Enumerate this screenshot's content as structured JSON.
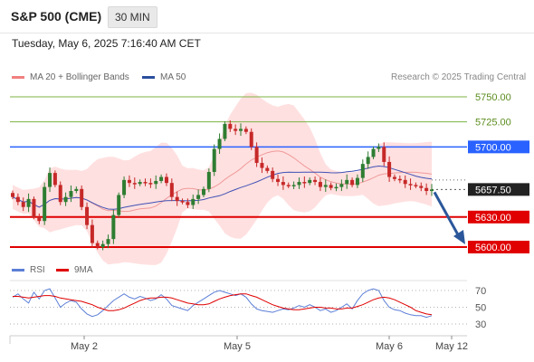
{
  "header": {
    "title": "S&P 500 (CME)",
    "timeframe": "30 MIN"
  },
  "datetime": "Tuesday, May 6, 2025 7:16:40 AM CET",
  "legend": {
    "ma20": "MA 20 + Bollinger Bands",
    "ma50": "MA 50",
    "rsi": "RSI",
    "ma9": "9MA"
  },
  "copyright": "Research © 2025 Trading Central",
  "colors": {
    "up": "#2e7d32",
    "down": "#c62828",
    "resistance": "#2962ff",
    "support": "#e00000",
    "target": "#7cb342",
    "ma20": "#ef9a9a",
    "ma50": "#3f51b5",
    "band": "#ffd5d5",
    "rsi": "#5c7fd6",
    "rsi_ma": "#e00000",
    "arrow": "#2b579a"
  },
  "chart_data": [
    {
      "type": "candlestick",
      "title": "S&P 500 (CME)",
      "timeframe": "30 MIN",
      "y_range": [
        5585,
        5765
      ],
      "x_labels": [
        "May 2",
        "May 5",
        "May 6",
        "May 12"
      ],
      "levels": [
        {
          "value": 5750.0,
          "label": "5750.00",
          "kind": "target"
        },
        {
          "value": 5725.0,
          "label": "5725.00",
          "kind": "target"
        },
        {
          "value": 5700.0,
          "label": "5700.00",
          "kind": "resistance"
        },
        {
          "value": 5657.5,
          "label": "5657.50",
          "kind": "last"
        },
        {
          "value": 5630.0,
          "label": "5630.00",
          "kind": "support"
        },
        {
          "value": 5600.0,
          "label": "5600.00",
          "kind": "support"
        }
      ],
      "close_series": [
        5650,
        5645,
        5640,
        5648,
        5630,
        5626,
        5660,
        5674,
        5662,
        5645,
        5650,
        5656,
        5658,
        5640,
        5622,
        5604,
        5600,
        5603,
        5608,
        5632,
        5652,
        5667,
        5664,
        5663,
        5665,
        5664,
        5663,
        5666,
        5670,
        5664,
        5650,
        5646,
        5645,
        5642,
        5648,
        5652,
        5658,
        5675,
        5698,
        5708,
        5723,
        5718,
        5716,
        5718,
        5715,
        5700,
        5684,
        5679,
        5676,
        5668,
        5665,
        5662,
        5661,
        5662,
        5665,
        5664,
        5667,
        5665,
        5660,
        5662,
        5659,
        5660,
        5663,
        5667,
        5662,
        5669,
        5683,
        5690,
        5698,
        5700,
        5685,
        5670,
        5668,
        5667,
        5663,
        5662,
        5661,
        5659,
        5656,
        5657.5
      ],
      "projection": {
        "from": 5657.5,
        "to": 5600
      },
      "series": [
        {
          "name": "MA 20 + Bollinger Bands"
        },
        {
          "name": "MA 50"
        }
      ]
    },
    {
      "type": "line",
      "title": "RSI",
      "y_ticks": [
        70,
        50,
        30
      ],
      "series": [
        {
          "name": "RSI",
          "values": [
            62,
            66,
            60,
            55,
            68,
            60,
            70,
            72,
            61,
            50,
            55,
            58,
            56,
            48,
            42,
            39,
            41,
            46,
            52,
            58,
            62,
            66,
            62,
            60,
            63,
            61,
            58,
            60,
            65,
            60,
            52,
            50,
            48,
            46,
            52,
            56,
            60,
            64,
            68,
            70,
            68,
            66,
            64,
            66,
            62,
            54,
            48,
            46,
            45,
            44,
            46,
            48,
            47,
            49,
            52,
            50,
            53,
            50,
            46,
            48,
            44,
            46,
            50,
            54,
            48,
            58,
            66,
            70,
            72,
            70,
            58,
            50,
            47,
            46,
            43,
            41,
            40,
            40,
            38,
            40
          ]
        },
        {
          "name": "9MA",
          "values": [
            63,
            63,
            62,
            61,
            62,
            63,
            64,
            64,
            63,
            61,
            60,
            59,
            58,
            57,
            55,
            53,
            50,
            48,
            46,
            46,
            47,
            49,
            52,
            55,
            58,
            60,
            61,
            61,
            62,
            62,
            61,
            59,
            57,
            55,
            54,
            53,
            53,
            54,
            57,
            60,
            62,
            64,
            65,
            66,
            66,
            64,
            62,
            59,
            56,
            53,
            51,
            49,
            48,
            47,
            47,
            48,
            49,
            50,
            50,
            49,
            49,
            48,
            48,
            49,
            49,
            51,
            53,
            56,
            59,
            61,
            62,
            61,
            59,
            56,
            53,
            50,
            46,
            44,
            42,
            41
          ]
        }
      ]
    }
  ]
}
